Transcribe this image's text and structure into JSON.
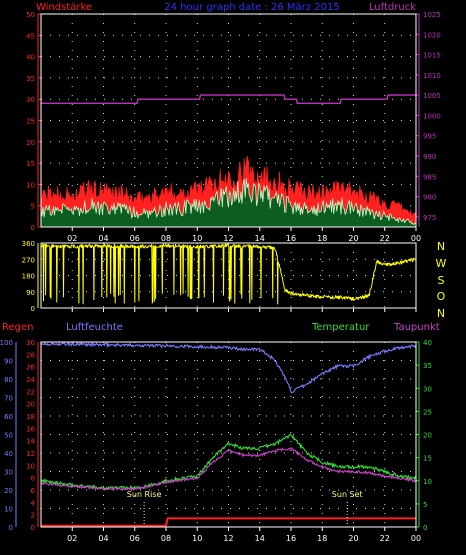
{
  "header": {
    "wind_label": "Windstärke",
    "title": "24 hour graph date : 26 März 2015",
    "pressure_label": "Luftdruck"
  },
  "compass": [
    "N",
    "W",
    "S",
    "O",
    "N"
  ],
  "bottom_labels": {
    "rain": "Regen",
    "humidity": "Luftfeuchte",
    "temperature": "Temperatur",
    "dewpoint": "Taupunkt",
    "sun_rise": "Sun Rise",
    "sun_set": "Sun Set"
  },
  "colors": {
    "wind_gust": "#ff2020",
    "wind_avg": "#ccffcc",
    "pressure": "#c030c0",
    "direction": "#ffff00",
    "humidity": "#7a7aff",
    "temperature": "#30dd30",
    "dewpoint": "#cc40cc",
    "rain": "#ff2020"
  },
  "chart_data": [
    {
      "type": "line",
      "title": "24 hour graph date : 26 März 2015",
      "x_ticks": [
        "02",
        "04",
        "06",
        "08",
        "10",
        "12",
        "14",
        "16",
        "18",
        "20",
        "22",
        "00"
      ],
      "y_left_label": "Windstärke",
      "y_left_ticks": [
        0,
        5,
        10,
        15,
        20,
        25,
        30,
        35,
        40,
        45,
        50
      ],
      "y_left_range": [
        0,
        50
      ],
      "y_right_label": "Luftdruck",
      "y_right_ticks": [
        975,
        980,
        985,
        990,
        995,
        1000,
        1005,
        1010,
        1015,
        1020,
        1025
      ],
      "y_right_range": [
        972.5,
        1025
      ],
      "series": [
        {
          "name": "Windstärke",
          "axis": "left",
          "color": "#ff2020",
          "x": [
            0,
            1,
            2,
            3,
            4,
            5,
            6,
            7,
            8,
            9,
            10,
            11,
            12,
            13,
            14,
            15,
            16,
            17,
            18,
            19,
            20,
            21,
            22,
            23,
            24
          ],
          "y": [
            8,
            9,
            8,
            10,
            9,
            9,
            7,
            8,
            9,
            9,
            10,
            11,
            13,
            15,
            14,
            12,
            10,
            9,
            9,
            10,
            9,
            8,
            6,
            5,
            3
          ]
        },
        {
          "name": "Windstärke Mittel",
          "axis": "left",
          "color": "#ccffcc",
          "x": [
            0,
            1,
            2,
            3,
            4,
            5,
            6,
            7,
            8,
            9,
            10,
            11,
            12,
            13,
            14,
            15,
            16,
            17,
            18,
            19,
            20,
            21,
            22,
            23,
            24
          ],
          "y": [
            4,
            5,
            4,
            6,
            5,
            5,
            4,
            4,
            5,
            5,
            6,
            7,
            9,
            10,
            9,
            7,
            6,
            5,
            5,
            6,
            5,
            4,
            3,
            2,
            1
          ]
        },
        {
          "name": "Luftdruck",
          "axis": "right",
          "color": "#c030c0",
          "x": [
            0,
            3,
            6,
            6.2,
            10,
            10.2,
            15,
            15.6,
            16.2,
            16.4,
            19,
            19.2,
            22,
            22.2,
            24
          ],
          "y": [
            1003,
            1003,
            1003,
            1004,
            1004,
            1005,
            1005,
            1004,
            1004,
            1003,
            1003,
            1004,
            1004,
            1005,
            1005
          ]
        }
      ]
    },
    {
      "type": "scatter",
      "x_ticks": [
        "02",
        "04",
        "06",
        "08",
        "10",
        "12",
        "14",
        "16",
        "18",
        "20",
        "22",
        "00"
      ],
      "y_ticks": [
        0,
        90,
        180,
        270,
        360
      ],
      "y_range": [
        0,
        360
      ],
      "series": [
        {
          "name": "Windrichtung",
          "color": "#ffff00",
          "x": [
            0,
            2,
            4,
            6,
            8,
            10,
            12,
            14,
            15,
            15.6,
            16,
            17,
            18,
            19,
            20,
            21,
            21.5,
            22,
            23,
            24
          ],
          "y": [
            345,
            340,
            345,
            340,
            345,
            340,
            345,
            340,
            330,
            100,
            80,
            70,
            60,
            60,
            50,
            70,
            260,
            240,
            250,
            270
          ]
        }
      ]
    },
    {
      "type": "line",
      "x_ticks": [
        "02",
        "04",
        "06",
        "08",
        "10",
        "12",
        "14",
        "16",
        "18",
        "20",
        "22",
        "00"
      ],
      "annotations": [
        {
          "text": "Sun Rise",
          "x": 6.6
        },
        {
          "text": "Sun Set",
          "x": 19.6
        }
      ],
      "y_left_outer": {
        "label": "Luftfeuchte",
        "ticks": [
          0,
          10,
          20,
          30,
          40,
          50,
          60,
          70,
          80,
          90,
          100
        ],
        "range": [
          0,
          100
        ]
      },
      "y_left_inner": {
        "label": "Regen",
        "ticks": [
          0,
          2,
          4,
          6,
          8,
          10,
          12,
          14,
          16,
          18,
          20,
          22,
          24,
          26,
          28,
          30
        ],
        "range": [
          0,
          30
        ]
      },
      "y_right": {
        "label": "Temperatur",
        "ticks": [
          0,
          5,
          10,
          15,
          20,
          25,
          30,
          35,
          40
        ],
        "range": [
          0,
          40
        ]
      },
      "series": [
        {
          "name": "Luftfeuchte",
          "axis": "left_outer",
          "color": "#7a7aff",
          "x": [
            0,
            8,
            12,
            13,
            14,
            15,
            15.8,
            16,
            17,
            18,
            19,
            20,
            21,
            22,
            23,
            24
          ],
          "y": [
            99,
            98,
            97,
            96,
            96,
            90,
            78,
            73,
            77,
            83,
            87,
            87,
            92,
            95,
            97,
            98
          ]
        },
        {
          "name": "Temperatur",
          "axis": "right",
          "color": "#30dd30",
          "x": [
            0,
            2,
            4,
            6,
            7,
            8,
            10,
            11,
            12,
            13,
            14,
            15,
            16,
            17,
            18,
            19,
            20,
            21,
            22,
            23,
            24
          ],
          "y": [
            10,
            9,
            8.5,
            8.5,
            9,
            10,
            11,
            15,
            18,
            17,
            17,
            18,
            20,
            16,
            14,
            13,
            13,
            13,
            12,
            11,
            10.5
          ]
        },
        {
          "name": "Taupunkt",
          "axis": "right",
          "color": "#cc40cc",
          "x": [
            0,
            2,
            4,
            6,
            7,
            8,
            10,
            11,
            12,
            13,
            14,
            15,
            16,
            17,
            18,
            19,
            20,
            21,
            22,
            23,
            24
          ],
          "y": [
            9.5,
            8.8,
            8.3,
            8.3,
            8.8,
            9.7,
            10.5,
            14,
            16.5,
            15.5,
            15.5,
            16.5,
            17,
            14.5,
            13,
            12,
            12,
            11.7,
            11,
            10.5,
            10
          ]
        },
        {
          "name": "Regen",
          "axis": "left_inner",
          "color": "#ff2020",
          "x": [
            0,
            8,
            8.1,
            24
          ],
          "y": [
            0.2,
            0.2,
            1.4,
            1.4
          ]
        }
      ]
    }
  ]
}
